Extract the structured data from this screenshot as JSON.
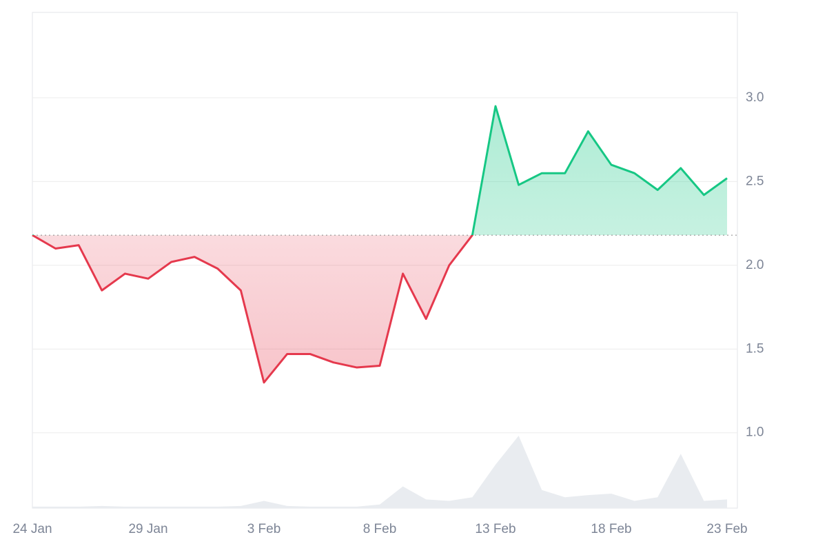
{
  "chart_data": {
    "type": "line",
    "x": [
      "24 Jan",
      "25 Jan",
      "26 Jan",
      "27 Jan",
      "28 Jan",
      "29 Jan",
      "30 Jan",
      "31 Jan",
      "1 Feb",
      "2 Feb",
      "3 Feb",
      "4 Feb",
      "5 Feb",
      "6 Feb",
      "7 Feb",
      "8 Feb",
      "9 Feb",
      "10 Feb",
      "11 Feb",
      "12 Feb",
      "13 Feb",
      "14 Feb",
      "15 Feb",
      "16 Feb",
      "17 Feb",
      "18 Feb",
      "19 Feb",
      "20 Feb",
      "21 Feb",
      "22 Feb",
      "23 Feb"
    ],
    "values": [
      2.18,
      2.1,
      2.12,
      1.85,
      1.95,
      1.92,
      2.02,
      2.05,
      1.98,
      1.85,
      1.3,
      1.47,
      1.47,
      1.42,
      1.39,
      1.4,
      1.95,
      1.68,
      2.0,
      2.18,
      2.95,
      2.48,
      2.55,
      2.55,
      2.8,
      2.6,
      2.55,
      2.45,
      2.58,
      2.42,
      2.52
    ],
    "volume": [
      2,
      2,
      2,
      3,
      2,
      2,
      2,
      2,
      2,
      3,
      10,
      3,
      2,
      2,
      2,
      5,
      30,
      12,
      10,
      15,
      60,
      100,
      25,
      15,
      18,
      20,
      10,
      15,
      75,
      10,
      12
    ],
    "baseline": 2.18,
    "color_above": "#16c784",
    "color_below": "#e5394d",
    "volume_color": "#e9ecf0",
    "ylim": [
      0.55,
      3.51
    ],
    "yticks": [
      {
        "value": 1,
        "label": "1.0"
      },
      {
        "value": 1.5,
        "label": "1.5"
      },
      {
        "value": 2,
        "label": "2.0"
      },
      {
        "value": 2.5,
        "label": "2.5"
      },
      {
        "value": 3,
        "label": "3.0"
      }
    ],
    "xticks": [
      "24 Jan",
      "29 Jan",
      "3 Feb",
      "8 Feb",
      "13 Feb",
      "18 Feb",
      "23 Feb"
    ],
    "grid": true
  }
}
